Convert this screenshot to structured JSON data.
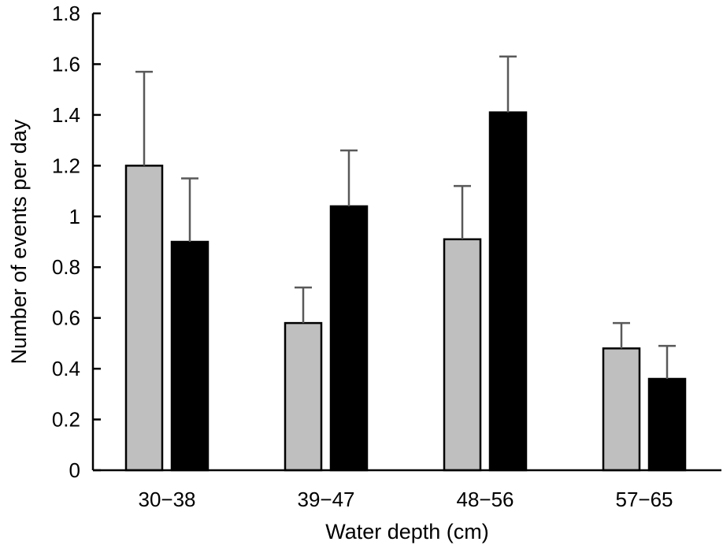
{
  "chart_data": {
    "type": "bar",
    "xlabel": "Water depth (cm)",
    "ylabel": "Number of events per day",
    "categories": [
      "30−38",
      "39−47",
      "48−56",
      "57−65"
    ],
    "ylim": [
      0,
      1.8
    ],
    "yticks": [
      "0",
      "0.2",
      "0.4",
      "0.6",
      "0.8",
      "1",
      "1.2",
      "1.4",
      "1.6",
      "1.8"
    ],
    "series": [
      {
        "color": "#bfbfbf",
        "values": [
          1.2,
          0.58,
          0.91,
          0.48
        ],
        "error": [
          0.37,
          0.14,
          0.21,
          0.1
        ]
      },
      {
        "color": "#000000",
        "values": [
          0.9,
          1.04,
          1.41,
          0.36
        ],
        "error": [
          0.25,
          0.22,
          0.22,
          0.13
        ]
      }
    ],
    "error_bar_color": "#595959",
    "grid": false,
    "legend": "none"
  }
}
